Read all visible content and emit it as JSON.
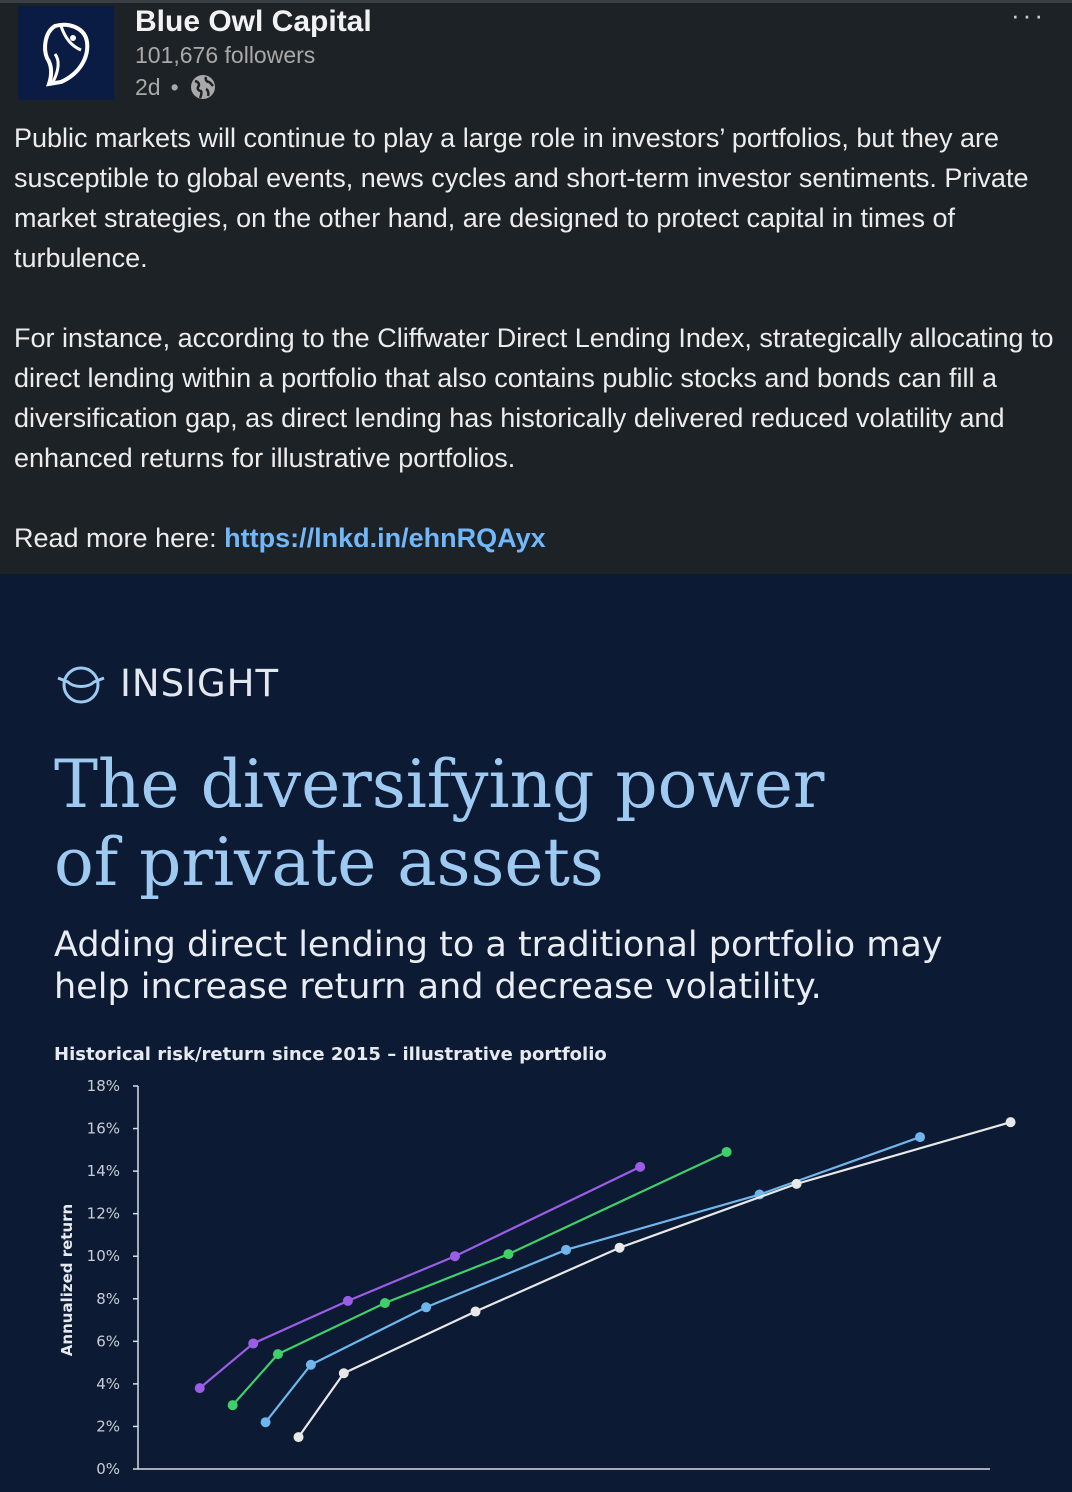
{
  "post": {
    "company_name": "Blue Owl Capital",
    "followers": "101,676 followers",
    "time": "2d",
    "separator": "•",
    "more": "···",
    "paragraph1": "Public markets will continue to play a large role in investors’ portfolios, but they are susceptible to global events, news cycles and short-term investor sentiments. Private market strategies, on the other hand, are designed to protect capital in times of turbulence.",
    "paragraph2": "For instance, according to the Cliffwater Direct Lending Index, strategically allocating to direct lending within a portfolio that also contains public stocks and bonds can fill a diversification gap, as direct lending has historically delivered reduced volatility and enhanced returns for illustrative portfolios.",
    "read_more_label": "Read more here: ",
    "link_text": "https://lnkd.in/ehnRQAyx",
    "icons": {
      "logo": "owl-logo-icon",
      "visibility": "globe-icon",
      "insight": "owl-eye-icon"
    }
  },
  "media": {
    "insight_label": "INSIGHT",
    "headline_line1": "The diversifying power",
    "headline_line2": "of private assets",
    "subhead": "Adding direct lending to a traditional portfolio may help increase return and decrease volatility.",
    "chart_title": "Historical risk/return since 2015 – illustrative portfolio"
  },
  "chart_data": {
    "type": "line",
    "ylabel": "Annualized return",
    "xlabel": "",
    "ylim": [
      0,
      18
    ],
    "yticks": [
      "0%",
      "2%",
      "4%",
      "6%",
      "8%",
      "10%",
      "12%",
      "14%",
      "16%",
      "18%"
    ],
    "y_tick_values": [
      0,
      2,
      4,
      6,
      8,
      10,
      12,
      14,
      16,
      18
    ],
    "xlim": [
      1.8,
      22.5
    ],
    "series": [
      {
        "color": "#9b5de5",
        "points": [
          [
            3.3,
            3.8
          ],
          [
            4.6,
            5.9
          ],
          [
            6.9,
            7.9
          ],
          [
            9.5,
            10.0
          ],
          [
            14.0,
            14.2
          ]
        ]
      },
      {
        "color": "#3fd06a",
        "points": [
          [
            4.1,
            3.0
          ],
          [
            5.2,
            5.4
          ],
          [
            7.8,
            7.8
          ],
          [
            10.8,
            10.1
          ],
          [
            16.1,
            14.9
          ]
        ]
      },
      {
        "color": "#6fb6ec",
        "points": [
          [
            4.9,
            2.2
          ],
          [
            6.0,
            4.9
          ],
          [
            8.8,
            7.6
          ],
          [
            12.2,
            10.3
          ],
          [
            16.9,
            12.9
          ],
          [
            20.8,
            15.6
          ]
        ]
      },
      {
        "color": "#e8e8e8",
        "points": [
          [
            5.7,
            1.5
          ],
          [
            6.8,
            4.5
          ],
          [
            10.0,
            7.4
          ],
          [
            13.5,
            10.4
          ],
          [
            17.8,
            13.4
          ],
          [
            23.0,
            16.3
          ]
        ]
      }
    ],
    "grid": false,
    "legend": "none"
  }
}
